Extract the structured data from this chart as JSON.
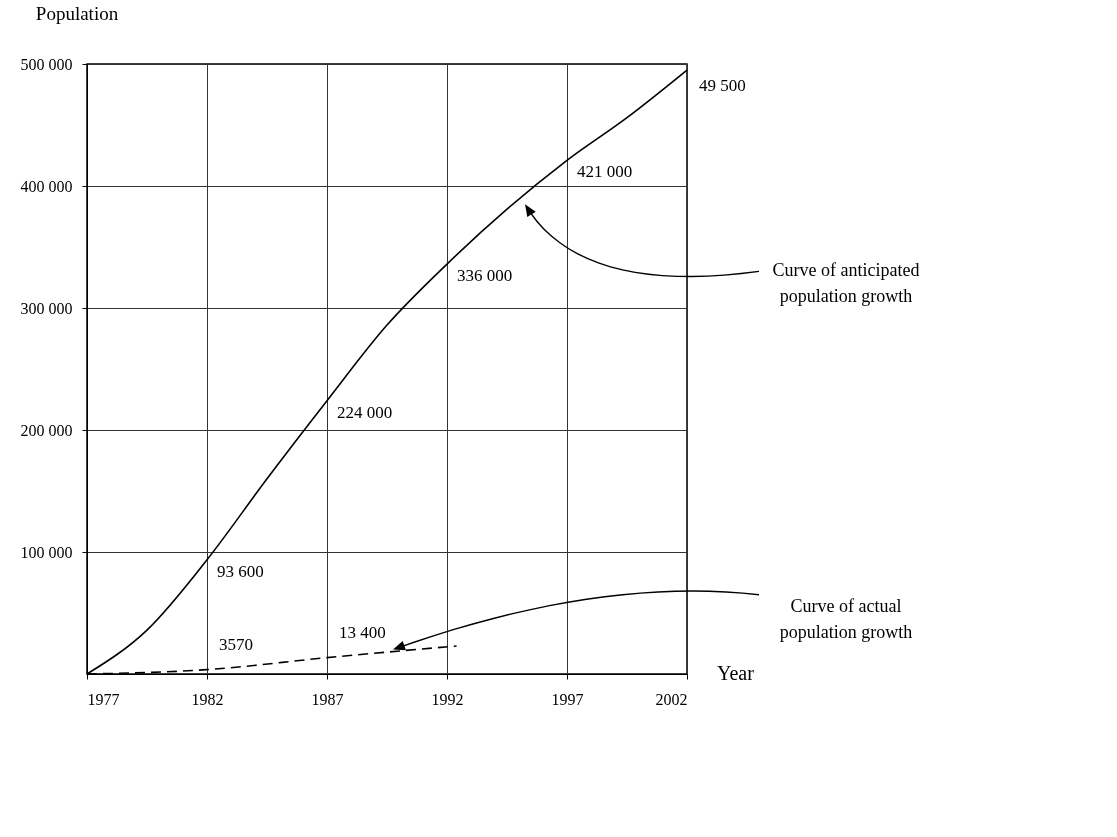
{
  "chart_data": {
    "type": "line",
    "xlabel": "Year",
    "ylabel": "Population",
    "xlim": [
      1977,
      2002
    ],
    "xticks": [
      1977,
      1982,
      1987,
      1992,
      1997,
      2002
    ],
    "ylim": [
      0,
      500000
    ],
    "yticks": [
      {
        "value": 100000,
        "label": "100 000"
      },
      {
        "value": 200000,
        "label": "200 000"
      },
      {
        "value": 300000,
        "label": "300 000"
      },
      {
        "value": 400000,
        "label": "400 000"
      },
      {
        "value": 500000,
        "label": "500 000"
      }
    ],
    "grid": true,
    "marker": "none",
    "series": [
      {
        "color": "#000000",
        "line_style": "solid",
        "x": [
          1977,
          1979.5,
          1982,
          1984.5,
          1987,
          1989.5,
          1992,
          1994.5,
          1997,
          1999.5,
          2002
        ],
        "values": [
          0,
          36000,
          93600,
          160000,
          224000,
          286000,
          336000,
          381000,
          421000,
          456000,
          495000
        ],
        "value_labels": [
          null,
          null,
          "93 600",
          null,
          "224 000",
          null,
          "336 000",
          null,
          "421 000",
          null,
          null
        ]
      },
      {
        "color": "#000000",
        "line_style": "dashed",
        "x": [
          1977,
          1982,
          1987,
          1992.4
        ],
        "values": [
          0,
          3570,
          13400,
          23000
        ],
        "value_labels": [
          null,
          "3570",
          "13 400",
          null
        ]
      }
    ],
    "annotations": [
      "49 500",
      "Curve of anticipated population growth",
      "Curve of actual population growth"
    ]
  }
}
